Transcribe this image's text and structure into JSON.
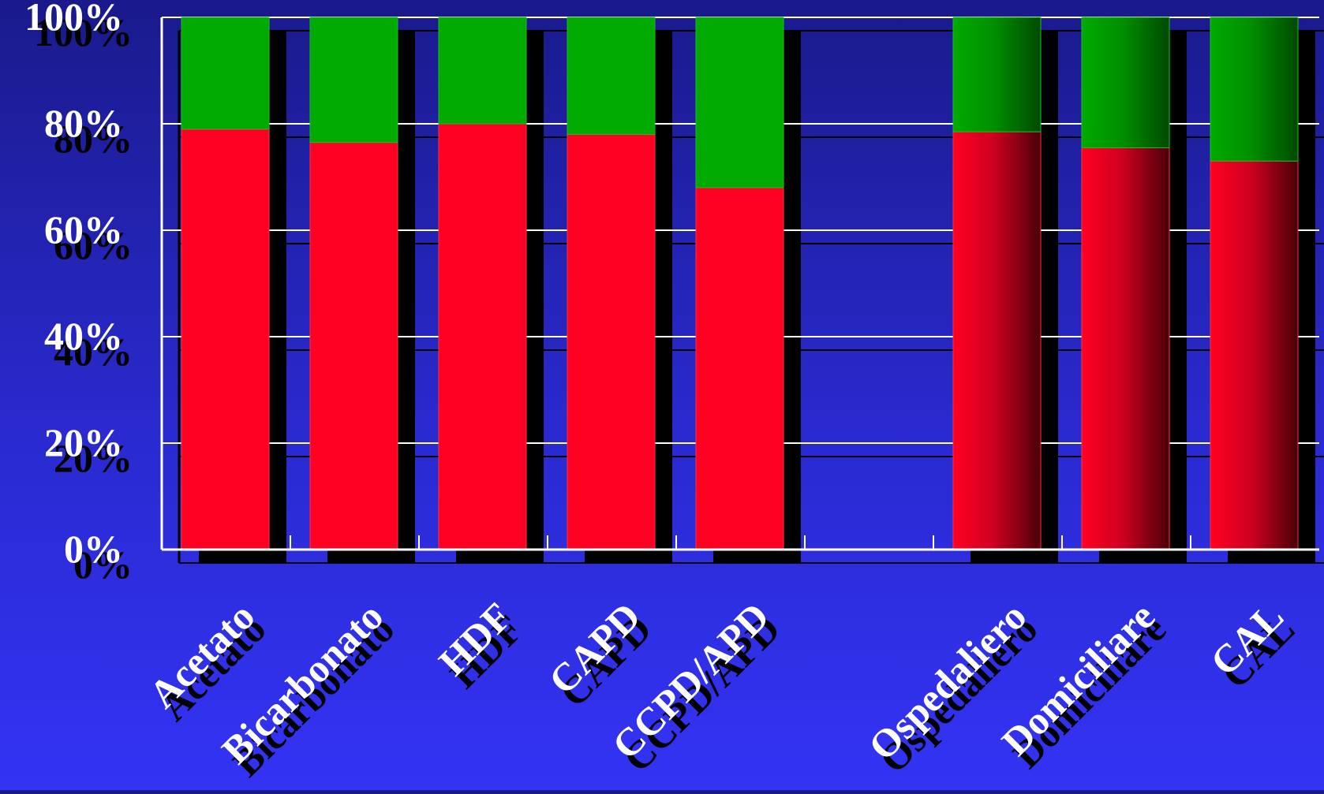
{
  "chart_data": {
    "type": "bar",
    "stacked": true,
    "percent_stacked": true,
    "categories": [
      "Acetato",
      "Bicarbonato",
      "HDF",
      "CAPD",
      "CCPD/APD",
      "",
      "Ospedaliero",
      "Domiciliare",
      "CAL"
    ],
    "series": [
      {
        "values": [
          79,
          76.5,
          80,
          78,
          68,
          null,
          78.5,
          75.5,
          73
        ]
      },
      {
        "values": [
          21,
          23.5,
          20,
          22,
          32,
          null,
          21.5,
          24.5,
          27
        ]
      }
    ],
    "ylim": [
      0,
      100
    ],
    "y_tick_labels": [
      "0%",
      "20%",
      "40%",
      "60%",
      "80%",
      "100%"
    ],
    "grid": true,
    "colors": {
      "series_1": "#ff0022",
      "series_2": "#00aa00",
      "axis": "#ffffff",
      "shadow": "#000000",
      "background_top": "#1a1a8c",
      "background_bottom": "#3333f5"
    }
  }
}
